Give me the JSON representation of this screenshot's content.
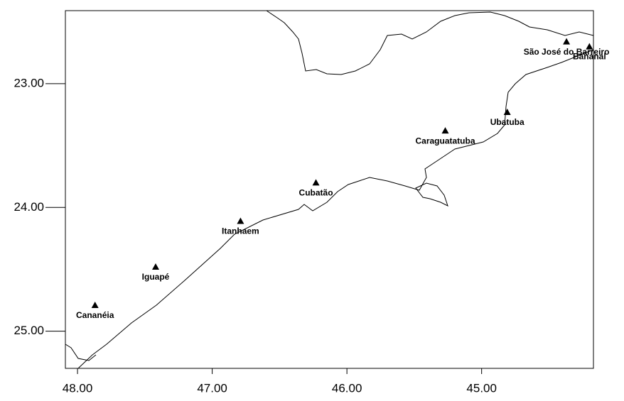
{
  "chart_data": {
    "type": "scatter",
    "labels": [
      "São José do Barreiro",
      "Bananal",
      "Ubatuba",
      "Caraguatatuba",
      "Cubatão",
      "Itanhaem",
      "Iguapé",
      "Cananéia"
    ],
    "x": [
      44.37,
      44.2,
      44.81,
      45.27,
      46.23,
      46.79,
      47.42,
      47.87
    ],
    "y": [
      22.66,
      22.7,
      23.23,
      23.38,
      23.8,
      24.11,
      24.48,
      24.79
    ],
    "color": "#000000",
    "xlim": [
      48.09,
      44.17
    ],
    "ylim": [
      22.41,
      25.3
    ],
    "xticks": [
      {
        "value": 48,
        "label": "48.00"
      },
      {
        "value": 47,
        "label": "47.00"
      },
      {
        "value": 46,
        "label": "46.00"
      },
      {
        "value": 45,
        "label": "45.00"
      }
    ],
    "yticks": [
      {
        "value": 23,
        "label": "23.00"
      },
      {
        "value": 24,
        "label": "24.00"
      },
      {
        "value": 25,
        "label": "25.00"
      }
    ]
  }
}
